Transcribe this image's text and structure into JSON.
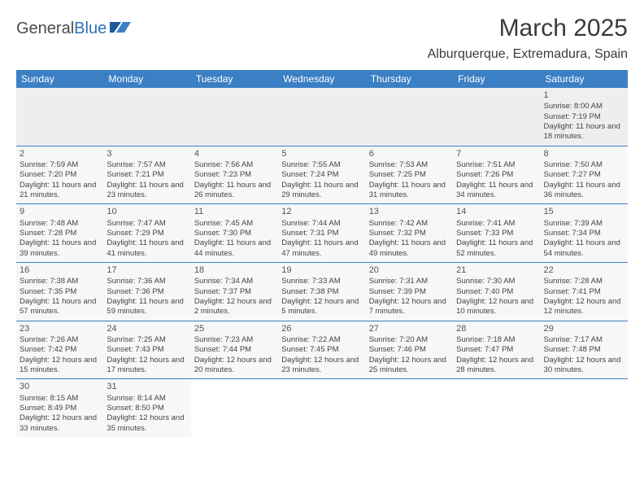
{
  "brand": {
    "part1": "General",
    "part2": "Blue"
  },
  "title": "March 2025",
  "location": "Alburquerque, Extremadura, Spain",
  "colors": {
    "header_bg": "#3b7fc4",
    "header_text": "#ffffff",
    "row_alt": "#f7f7f7",
    "row_first": "#eeeeee",
    "border": "#3b7fc4",
    "text": "#444444"
  },
  "weekdays": [
    "Sunday",
    "Monday",
    "Tuesday",
    "Wednesday",
    "Thursday",
    "Friday",
    "Saturday"
  ],
  "weeks": [
    [
      null,
      null,
      null,
      null,
      null,
      null,
      {
        "n": "1",
        "sr": "Sunrise: 8:00 AM",
        "ss": "Sunset: 7:19 PM",
        "dl": "Daylight: 11 hours and 18 minutes."
      }
    ],
    [
      {
        "n": "2",
        "sr": "Sunrise: 7:59 AM",
        "ss": "Sunset: 7:20 PM",
        "dl": "Daylight: 11 hours and 21 minutes."
      },
      {
        "n": "3",
        "sr": "Sunrise: 7:57 AM",
        "ss": "Sunset: 7:21 PM",
        "dl": "Daylight: 11 hours and 23 minutes."
      },
      {
        "n": "4",
        "sr": "Sunrise: 7:56 AM",
        "ss": "Sunset: 7:23 PM",
        "dl": "Daylight: 11 hours and 26 minutes."
      },
      {
        "n": "5",
        "sr": "Sunrise: 7:55 AM",
        "ss": "Sunset: 7:24 PM",
        "dl": "Daylight: 11 hours and 29 minutes."
      },
      {
        "n": "6",
        "sr": "Sunrise: 7:53 AM",
        "ss": "Sunset: 7:25 PM",
        "dl": "Daylight: 11 hours and 31 minutes."
      },
      {
        "n": "7",
        "sr": "Sunrise: 7:51 AM",
        "ss": "Sunset: 7:26 PM",
        "dl": "Daylight: 11 hours and 34 minutes."
      },
      {
        "n": "8",
        "sr": "Sunrise: 7:50 AM",
        "ss": "Sunset: 7:27 PM",
        "dl": "Daylight: 11 hours and 36 minutes."
      }
    ],
    [
      {
        "n": "9",
        "sr": "Sunrise: 7:48 AM",
        "ss": "Sunset: 7:28 PM",
        "dl": "Daylight: 11 hours and 39 minutes."
      },
      {
        "n": "10",
        "sr": "Sunrise: 7:47 AM",
        "ss": "Sunset: 7:29 PM",
        "dl": "Daylight: 11 hours and 41 minutes."
      },
      {
        "n": "11",
        "sr": "Sunrise: 7:45 AM",
        "ss": "Sunset: 7:30 PM",
        "dl": "Daylight: 11 hours and 44 minutes."
      },
      {
        "n": "12",
        "sr": "Sunrise: 7:44 AM",
        "ss": "Sunset: 7:31 PM",
        "dl": "Daylight: 11 hours and 47 minutes."
      },
      {
        "n": "13",
        "sr": "Sunrise: 7:42 AM",
        "ss": "Sunset: 7:32 PM",
        "dl": "Daylight: 11 hours and 49 minutes."
      },
      {
        "n": "14",
        "sr": "Sunrise: 7:41 AM",
        "ss": "Sunset: 7:33 PM",
        "dl": "Daylight: 11 hours and 52 minutes."
      },
      {
        "n": "15",
        "sr": "Sunrise: 7:39 AM",
        "ss": "Sunset: 7:34 PM",
        "dl": "Daylight: 11 hours and 54 minutes."
      }
    ],
    [
      {
        "n": "16",
        "sr": "Sunrise: 7:38 AM",
        "ss": "Sunset: 7:35 PM",
        "dl": "Daylight: 11 hours and 57 minutes."
      },
      {
        "n": "17",
        "sr": "Sunrise: 7:36 AM",
        "ss": "Sunset: 7:36 PM",
        "dl": "Daylight: 11 hours and 59 minutes."
      },
      {
        "n": "18",
        "sr": "Sunrise: 7:34 AM",
        "ss": "Sunset: 7:37 PM",
        "dl": "Daylight: 12 hours and 2 minutes."
      },
      {
        "n": "19",
        "sr": "Sunrise: 7:33 AM",
        "ss": "Sunset: 7:38 PM",
        "dl": "Daylight: 12 hours and 5 minutes."
      },
      {
        "n": "20",
        "sr": "Sunrise: 7:31 AM",
        "ss": "Sunset: 7:39 PM",
        "dl": "Daylight: 12 hours and 7 minutes."
      },
      {
        "n": "21",
        "sr": "Sunrise: 7:30 AM",
        "ss": "Sunset: 7:40 PM",
        "dl": "Daylight: 12 hours and 10 minutes."
      },
      {
        "n": "22",
        "sr": "Sunrise: 7:28 AM",
        "ss": "Sunset: 7:41 PM",
        "dl": "Daylight: 12 hours and 12 minutes."
      }
    ],
    [
      {
        "n": "23",
        "sr": "Sunrise: 7:26 AM",
        "ss": "Sunset: 7:42 PM",
        "dl": "Daylight: 12 hours and 15 minutes."
      },
      {
        "n": "24",
        "sr": "Sunrise: 7:25 AM",
        "ss": "Sunset: 7:43 PM",
        "dl": "Daylight: 12 hours and 17 minutes."
      },
      {
        "n": "25",
        "sr": "Sunrise: 7:23 AM",
        "ss": "Sunset: 7:44 PM",
        "dl": "Daylight: 12 hours and 20 minutes."
      },
      {
        "n": "26",
        "sr": "Sunrise: 7:22 AM",
        "ss": "Sunset: 7:45 PM",
        "dl": "Daylight: 12 hours and 23 minutes."
      },
      {
        "n": "27",
        "sr": "Sunrise: 7:20 AM",
        "ss": "Sunset: 7:46 PM",
        "dl": "Daylight: 12 hours and 25 minutes."
      },
      {
        "n": "28",
        "sr": "Sunrise: 7:18 AM",
        "ss": "Sunset: 7:47 PM",
        "dl": "Daylight: 12 hours and 28 minutes."
      },
      {
        "n": "29",
        "sr": "Sunrise: 7:17 AM",
        "ss": "Sunset: 7:48 PM",
        "dl": "Daylight: 12 hours and 30 minutes."
      }
    ],
    [
      {
        "n": "30",
        "sr": "Sunrise: 8:15 AM",
        "ss": "Sunset: 8:49 PM",
        "dl": "Daylight: 12 hours and 33 minutes."
      },
      {
        "n": "31",
        "sr": "Sunrise: 8:14 AM",
        "ss": "Sunset: 8:50 PM",
        "dl": "Daylight: 12 hours and 35 minutes."
      },
      null,
      null,
      null,
      null,
      null
    ]
  ]
}
